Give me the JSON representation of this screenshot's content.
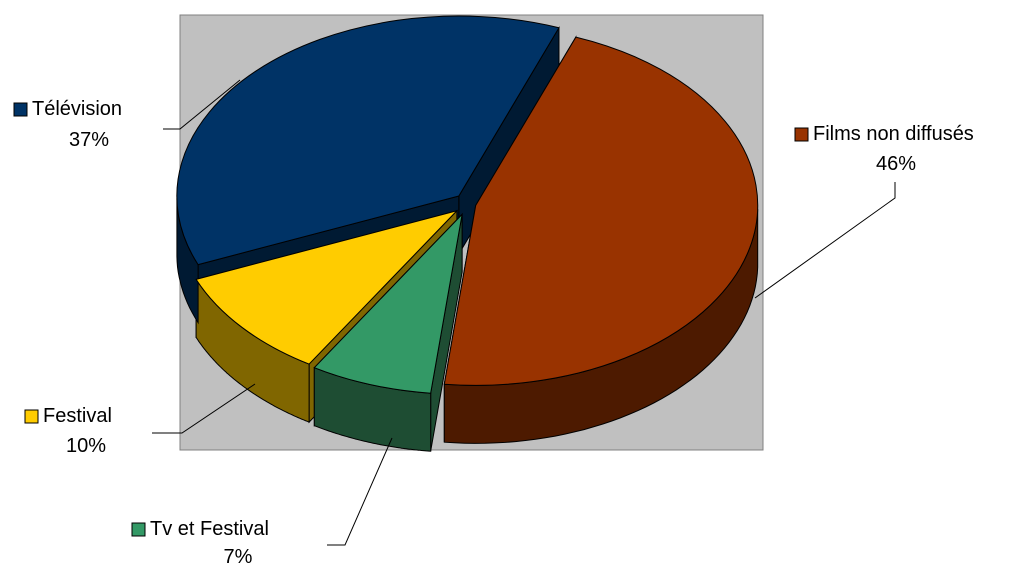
{
  "chart_data": {
    "type": "pie",
    "three_d": true,
    "legend": "none",
    "plot_area_color": "#c0c0c0",
    "slices": [
      {
        "label": "Films non diffusés",
        "value": 46,
        "value_label": "46%",
        "color": "#993300",
        "side_color": "#4d1a00"
      },
      {
        "label": "Tv et Festival",
        "value": 7,
        "value_label": "7%",
        "color": "#339966",
        "side_color": "#1e4d33"
      },
      {
        "label": "Festival",
        "value": 10,
        "value_label": "10%",
        "color": "#ffcc00",
        "side_color": "#806600"
      },
      {
        "label": "Télévision",
        "value": 37,
        "value_label": "37%",
        "color": "#003366",
        "side_color": "#001a33"
      }
    ]
  }
}
